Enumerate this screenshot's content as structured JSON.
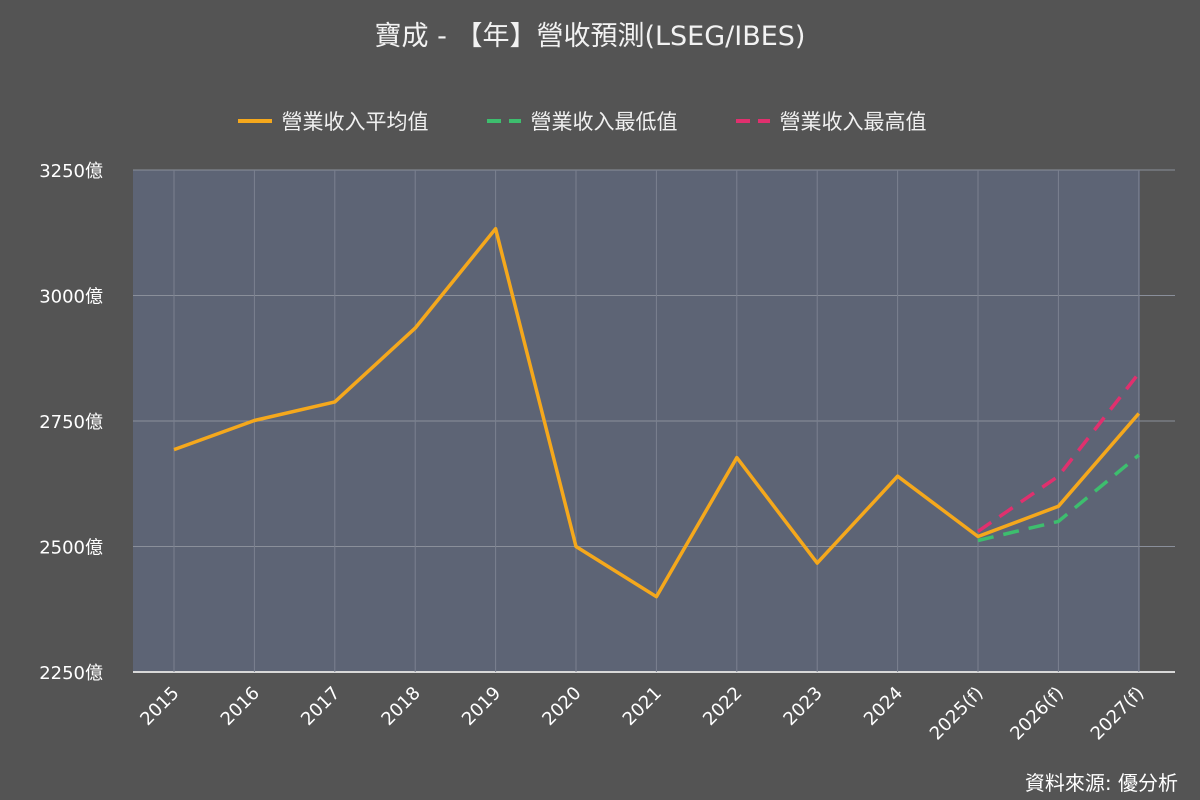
{
  "source_label": "資料來源: 優分析",
  "chart_data": {
    "type": "line",
    "title": "寶成 - 【年】營收預測(LSEG/IBES)",
    "xlabel": "",
    "ylabel": "",
    "categories": [
      "2015",
      "2016",
      "2017",
      "2018",
      "2019",
      "2020",
      "2021",
      "2022",
      "2023",
      "2024",
      "2025(f)",
      "2026(f)",
      "2027(f)"
    ],
    "ylim": [
      2250,
      3250
    ],
    "yticks": [
      2250,
      2500,
      2750,
      3000,
      3250
    ],
    "ytick_suffix": "億",
    "grid": true,
    "legend_position": "top-center",
    "series": [
      {
        "name": "營業收入平均值",
        "color": "#F5A81C",
        "dashed": false,
        "values": [
          2693,
          2751,
          2788,
          2935,
          3133,
          2500,
          2400,
          2677,
          2467,
          2640,
          2520,
          2580,
          2765
        ]
      },
      {
        "name": "營業收入最低值",
        "color": "#3DBE6E",
        "dashed": true,
        "values": [
          null,
          null,
          null,
          null,
          null,
          null,
          null,
          null,
          null,
          null,
          2512,
          2550,
          2682
        ]
      },
      {
        "name": "營業收入最高值",
        "color": "#E0306E",
        "dashed": true,
        "values": [
          null,
          null,
          null,
          null,
          null,
          null,
          null,
          null,
          null,
          null,
          2530,
          2640,
          2845
        ]
      }
    ]
  }
}
